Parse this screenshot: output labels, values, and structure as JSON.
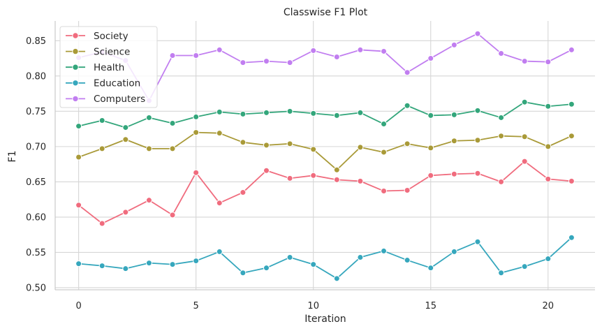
{
  "chart_data": {
    "type": "line",
    "title": "Classwise F1 Plot",
    "xlabel": "Iteration",
    "ylabel": "F1",
    "x": [
      0,
      1,
      2,
      3,
      4,
      5,
      6,
      7,
      8,
      9,
      10,
      11,
      12,
      13,
      14,
      15,
      16,
      17,
      18,
      19,
      20,
      21
    ],
    "xlim": [
      -1,
      22
    ],
    "ylim": [
      0.497,
      0.878
    ],
    "xticks": [
      0,
      5,
      10,
      15,
      20
    ],
    "yticks": [
      0.5,
      0.55,
      0.6,
      0.65,
      0.7,
      0.75,
      0.8,
      0.85
    ],
    "xtick_labels": [
      "0",
      "5",
      "10",
      "15",
      "20"
    ],
    "ytick_labels": [
      "0.50",
      "0.55",
      "0.60",
      "0.65",
      "0.70",
      "0.75",
      "0.80",
      "0.85"
    ],
    "grid": true,
    "legend_position": "top-left",
    "series": [
      {
        "name": "Society",
        "color": "#f06c7e",
        "values": [
          0.617,
          0.591,
          0.607,
          0.624,
          0.603,
          0.663,
          0.62,
          0.635,
          0.666,
          0.655,
          0.659,
          0.653,
          0.651,
          0.637,
          0.638,
          0.659,
          0.661,
          0.662,
          0.65,
          0.679,
          0.654,
          0.651
        ]
      },
      {
        "name": "Science",
        "color": "#a99a38",
        "values": [
          0.685,
          0.697,
          0.71,
          0.697,
          0.697,
          0.72,
          0.719,
          0.706,
          0.702,
          0.704,
          0.696,
          0.667,
          0.699,
          0.692,
          0.704,
          0.698,
          0.708,
          0.709,
          0.715,
          0.714,
          0.7,
          0.715
        ]
      },
      {
        "name": "Health",
        "color": "#33a67b",
        "values": [
          0.729,
          0.737,
          0.727,
          0.741,
          0.733,
          0.742,
          0.749,
          0.746,
          0.748,
          0.75,
          0.747,
          0.744,
          0.748,
          0.732,
          0.758,
          0.744,
          0.745,
          0.751,
          0.741,
          0.763,
          0.757,
          0.76
        ]
      },
      {
        "name": "Education",
        "color": "#36a7bd",
        "values": [
          0.534,
          0.531,
          0.527,
          0.535,
          0.533,
          0.538,
          0.551,
          0.521,
          0.528,
          0.543,
          0.533,
          0.513,
          0.543,
          0.552,
          0.539,
          0.528,
          0.551,
          0.565,
          0.521,
          0.53,
          0.541,
          0.571
        ]
      },
      {
        "name": "Computers",
        "color": "#c17ef0",
        "values": [
          0.826,
          0.834,
          0.822,
          0.765,
          0.829,
          0.829,
          0.837,
          0.819,
          0.821,
          0.819,
          0.836,
          0.827,
          0.837,
          0.835,
          0.805,
          0.825,
          0.844,
          0.86,
          0.832,
          0.821,
          0.82,
          0.837
        ]
      }
    ]
  }
}
